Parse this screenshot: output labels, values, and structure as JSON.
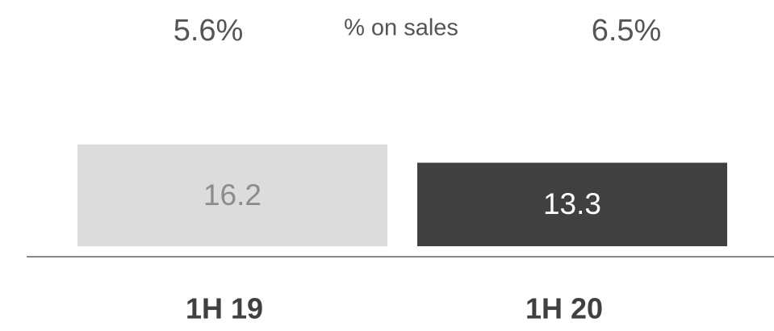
{
  "chart_data": {
    "type": "bar",
    "categories": [
      "1H 19",
      "1H 20"
    ],
    "values": [
      16.2,
      13.3
    ],
    "colors": [
      "#dcdcdc",
      "#404040"
    ],
    "label_colors": [
      "#8c8c8c",
      "#ffffff"
    ],
    "annotations": {
      "label": "% on sales",
      "values": [
        5.6,
        6.5
      ],
      "value_labels": [
        "5.6%",
        "6.5%"
      ]
    }
  }
}
